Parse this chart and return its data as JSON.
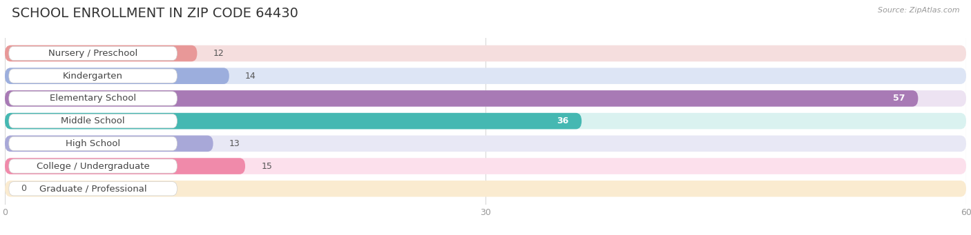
{
  "title": "SCHOOL ENROLLMENT IN ZIP CODE 64430",
  "source": "Source: ZipAtlas.com",
  "categories": [
    "Nursery / Preschool",
    "Kindergarten",
    "Elementary School",
    "Middle School",
    "High School",
    "College / Undergraduate",
    "Graduate / Professional"
  ],
  "values": [
    12,
    14,
    57,
    36,
    13,
    15,
    0
  ],
  "bar_colors": [
    "#e89898",
    "#9caedd",
    "#a87ab5",
    "#45b8b2",
    "#a8a8d8",
    "#f08aaa",
    "#f0c080"
  ],
  "bar_bg_colors": [
    "#f5dede",
    "#dde5f5",
    "#ede3f2",
    "#daf2f0",
    "#e8e8f5",
    "#fce0ec",
    "#faebd0"
  ],
  "xlim": [
    0,
    60
  ],
  "xticks": [
    0,
    30,
    60
  ],
  "title_fontsize": 14,
  "label_fontsize": 9.5,
  "value_fontsize": 9,
  "background_color": "#ffffff"
}
